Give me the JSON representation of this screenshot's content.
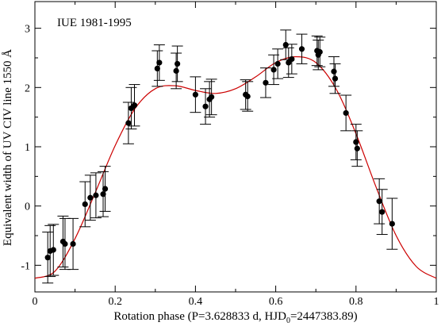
{
  "chart_data": {
    "type": "scatter",
    "annotation": "IUE 1981-1995",
    "xlabel_main": "Rotation phase (P=3.628833 d, HJD",
    "xlabel_sub": "0",
    "xlabel_tail": "=2447383.89)",
    "ylabel": "Equivalent width of UV CIV line 1550 Å",
    "xlim": [
      0,
      1
    ],
    "ylim": [
      -1.45,
      3.45
    ],
    "x_ticks": [
      0,
      0.2,
      0.4,
      0.6,
      0.8,
      1
    ],
    "x_tick_labels": [
      "0",
      "0.2",
      "0.4",
      "0.6",
      "0.8",
      "1"
    ],
    "y_ticks": [
      -1,
      0,
      1,
      2,
      3
    ],
    "y_tick_labels": [
      "-1",
      "0",
      "1",
      "2",
      "3"
    ],
    "grid": false,
    "points": [
      {
        "x": 0.032,
        "y": -0.87,
        "err": 0.43
      },
      {
        "x": 0.038,
        "y": -0.76,
        "err": 0.43
      },
      {
        "x": 0.046,
        "y": -0.74,
        "err": 0.43
      },
      {
        "x": 0.07,
        "y": -0.6,
        "err": 0.43
      },
      {
        "x": 0.075,
        "y": -0.64,
        "err": 0.43
      },
      {
        "x": 0.095,
        "y": -0.64,
        "err": 0.43
      },
      {
        "x": 0.125,
        "y": 0.03,
        "err": 0.38
      },
      {
        "x": 0.138,
        "y": 0.14,
        "err": 0.38
      },
      {
        "x": 0.152,
        "y": 0.18,
        "err": 0.38
      },
      {
        "x": 0.17,
        "y": 0.2,
        "err": 0.38
      },
      {
        "x": 0.175,
        "y": 0.29,
        "err": 0.38
      },
      {
        "x": 0.233,
        "y": 1.4,
        "err": 0.35
      },
      {
        "x": 0.24,
        "y": 1.65,
        "err": 0.35
      },
      {
        "x": 0.248,
        "y": 1.7,
        "err": 0.35
      },
      {
        "x": 0.305,
        "y": 2.32,
        "err": 0.3
      },
      {
        "x": 0.31,
        "y": 2.42,
        "err": 0.3
      },
      {
        "x": 0.352,
        "y": 2.28,
        "err": 0.3
      },
      {
        "x": 0.355,
        "y": 2.4,
        "err": 0.3
      },
      {
        "x": 0.4,
        "y": 1.88,
        "err": 0.3
      },
      {
        "x": 0.425,
        "y": 1.68,
        "err": 0.3
      },
      {
        "x": 0.435,
        "y": 1.8,
        "err": 0.3
      },
      {
        "x": 0.44,
        "y": 1.84,
        "err": 0.3
      },
      {
        "x": 0.525,
        "y": 1.88,
        "err": 0.25
      },
      {
        "x": 0.53,
        "y": 1.85,
        "err": 0.25
      },
      {
        "x": 0.575,
        "y": 2.08,
        "err": 0.25
      },
      {
        "x": 0.595,
        "y": 2.3,
        "err": 0.25
      },
      {
        "x": 0.605,
        "y": 2.4,
        "err": 0.25
      },
      {
        "x": 0.625,
        "y": 2.72,
        "err": 0.25
      },
      {
        "x": 0.632,
        "y": 2.42,
        "err": 0.25
      },
      {
        "x": 0.64,
        "y": 2.48,
        "err": 0.25
      },
      {
        "x": 0.665,
        "y": 2.65,
        "err": 0.25
      },
      {
        "x": 0.703,
        "y": 2.62,
        "err": 0.25
      },
      {
        "x": 0.706,
        "y": 2.55,
        "err": 0.25
      },
      {
        "x": 0.71,
        "y": 2.6,
        "err": 0.25
      },
      {
        "x": 0.745,
        "y": 2.27,
        "err": 0.25
      },
      {
        "x": 0.748,
        "y": 2.15,
        "err": 0.25
      },
      {
        "x": 0.775,
        "y": 1.57,
        "err": 0.3
      },
      {
        "x": 0.8,
        "y": 1.08,
        "err": 0.3
      },
      {
        "x": 0.803,
        "y": 0.97,
        "err": 0.3
      },
      {
        "x": 0.858,
        "y": 0.08,
        "err": 0.38
      },
      {
        "x": 0.865,
        "y": -0.1,
        "err": 0.38
      },
      {
        "x": 0.89,
        "y": -0.3,
        "err": 0.43
      }
    ],
    "fit_curve": {
      "color": "#cc0000",
      "x": [
        0,
        0.05,
        0.1,
        0.15,
        0.2,
        0.25,
        0.3,
        0.35,
        0.4,
        0.45,
        0.5,
        0.55,
        0.6,
        0.65,
        0.7,
        0.75,
        0.8,
        0.85,
        0.9,
        0.95,
        1
      ],
      "y": [
        -1.22,
        -1.1,
        -0.55,
        0.22,
        1.02,
        1.65,
        1.98,
        2.03,
        1.95,
        1.9,
        1.98,
        2.18,
        2.42,
        2.52,
        2.42,
        1.98,
        1.22,
        0.32,
        -0.5,
        -1.02,
        -1.22
      ]
    },
    "marker_color": "#000000",
    "errorbar_color": "#000000"
  }
}
